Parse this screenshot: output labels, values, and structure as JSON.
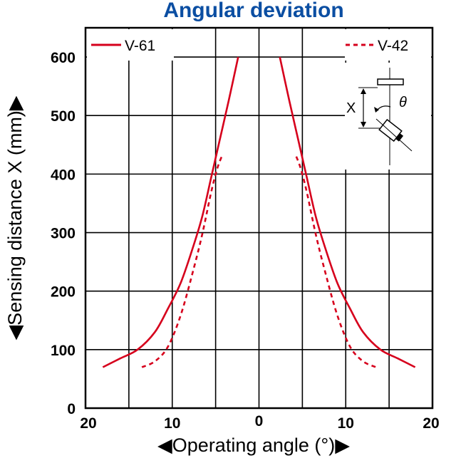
{
  "chart_data": {
    "type": "line",
    "title": "Angular deviation",
    "xlabel": "◀Operating angle (°)▶",
    "ylabel": "◀Sensing distance X (mm)▶",
    "xlim": [
      -20,
      20
    ],
    "ylim": [
      0,
      650
    ],
    "x_ticks": [
      -20,
      -10,
      0,
      10,
      20
    ],
    "x_tick_labels": [
      "20",
      "10",
      "0",
      "10",
      "20"
    ],
    "y_ticks": [
      0,
      100,
      200,
      300,
      400,
      500,
      600
    ],
    "y_tick_labels": [
      "0",
      "100",
      "200",
      "300",
      "400",
      "500",
      "600"
    ],
    "grid": true,
    "legend_placement": "top",
    "series": [
      {
        "name": "V-61",
        "style": "solid",
        "color": "#d6001c",
        "left": {
          "x": [
            -18.0,
            -16.0,
            -14.0,
            -12.0,
            -10.5,
            -9.0,
            -7.5,
            -6.5,
            -5.5,
            -4.5,
            -3.5,
            -2.4
          ],
          "y": [
            70,
            85,
            100,
            130,
            170,
            215,
            280,
            330,
            395,
            460,
            525,
            600
          ]
        },
        "right": {
          "x": [
            2.4,
            3.5,
            4.5,
            5.5,
            6.5,
            7.5,
            9.0,
            10.5,
            12.0,
            14.0,
            16.0,
            18.0
          ],
          "y": [
            600,
            525,
            460,
            395,
            330,
            280,
            215,
            170,
            130,
            100,
            85,
            70
          ]
        }
      },
      {
        "name": "V-42",
        "style": "dashed",
        "color": "#d6001c",
        "left": {
          "x": [
            -13.5,
            -12.0,
            -10.5,
            -9.0,
            -7.5,
            -6.5,
            -5.5,
            -4.8,
            -4.3
          ],
          "y": [
            70,
            80,
            105,
            160,
            240,
            300,
            370,
            410,
            430
          ]
        },
        "right": {
          "x": [
            4.3,
            4.8,
            5.5,
            6.5,
            7.5,
            9.0,
            10.5,
            12.0,
            13.5
          ],
          "y": [
            430,
            410,
            370,
            300,
            240,
            160,
            105,
            80,
            70
          ]
        }
      }
    ],
    "inset": {
      "distance_label": "X",
      "angle_label": "θ"
    }
  },
  "colors": {
    "title": "#0b4ea2",
    "curve": "#d6001c",
    "grid": "#000000",
    "text": "#000000"
  }
}
